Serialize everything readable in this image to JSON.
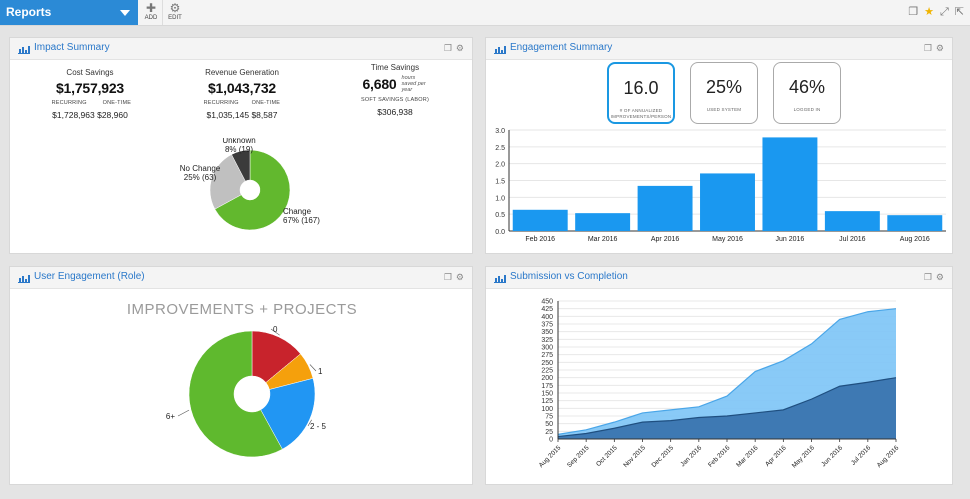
{
  "topbar": {
    "title": "Reports",
    "add_label": "ADD",
    "edit_label": "EDIT",
    "add_icon": "plus-icon",
    "edit_icon": "gear-icon"
  },
  "impact": {
    "title": "Impact Summary",
    "cost": {
      "title": "Cost Savings",
      "value": "$1,757,923",
      "sub1_label": "RECURRING",
      "sub2_label": "ONE-TIME",
      "sub1_value": "$1,728,963",
      "sub2_value": "$28,960"
    },
    "revenue": {
      "title": "Revenue Generation",
      "value": "$1,043,732",
      "sub1_label": "RECURRING",
      "sub2_label": "ONE-TIME",
      "sub1_value": "$1,035,145",
      "sub2_value": "$8,587"
    },
    "time": {
      "title": "Time Savings",
      "value": "6,680",
      "unit": "hours saved per year",
      "soft_label": "SOFT SAVINGS (LABOR)",
      "soft_value": "$306,938"
    },
    "donut": [
      {
        "label": "Change",
        "value_text": "67% (167)",
        "value": 167,
        "color": "#62b82e"
      },
      {
        "label": "No Change",
        "value_text": "25% (63)",
        "value": 63,
        "color": "#c0c0c0"
      },
      {
        "label": "Unknown",
        "value_text": "8% (19)",
        "value": 19,
        "color": "#3b3b3b"
      }
    ]
  },
  "engagement": {
    "title": "Engagement Summary",
    "kpis": [
      {
        "value": "16.0",
        "label": "# OF ANNUALIZED IMPROVEMENTS/PERSON"
      },
      {
        "value": "25%",
        "label": "USED SYSTEM"
      },
      {
        "value": "46%",
        "label": "LOGGED IN"
      }
    ]
  },
  "user_engagement": {
    "title": "User Engagement (Role)",
    "subtitle": "IMPROVEMENTS + PROJECTS"
  },
  "submission": {
    "title": "Submission vs Completion"
  },
  "chart_data": [
    {
      "type": "pie",
      "title": "Impact Summary",
      "categories": [
        "Change",
        "No Change",
        "Unknown"
      ],
      "values": [
        167,
        63,
        19
      ],
      "percent": [
        67,
        25,
        8
      ]
    },
    {
      "type": "bar",
      "title": "Engagement Summary",
      "categories": [
        "Feb 2016",
        "Mar 2016",
        "Apr 2016",
        "May 2016",
        "Jun 2016",
        "Jul 2016",
        "Aug 2016"
      ],
      "values": [
        0.63,
        0.53,
        1.34,
        1.71,
        2.78,
        0.59,
        0.47
      ],
      "ylim": [
        0,
        3.0
      ],
      "yticks": [
        0.0,
        0.5,
        1.0,
        1.5,
        2.0,
        2.5,
        3.0
      ],
      "color": "#1a98f0"
    },
    {
      "type": "pie",
      "title": "IMPROVEMENTS + PROJECTS",
      "categories": [
        "0",
        "1",
        "2 - 5",
        "6+"
      ],
      "values": [
        14,
        7,
        21,
        58
      ],
      "colors": [
        "#c8232c",
        "#f5a00c",
        "#2196f3",
        "#5fb92e"
      ]
    },
    {
      "type": "area",
      "title": "Submission vs Completion",
      "categories": [
        "Aug 2015",
        "Sep 2015",
        "Oct 2015",
        "Nov 2015",
        "Dec 2015",
        "Jan 2016",
        "Feb 2016",
        "Mar 2016",
        "Apr 2016",
        "May 2016",
        "Jun 2016",
        "Jul 2016",
        "Aug 2016"
      ],
      "series": [
        {
          "name": "Submission",
          "values": [
            15,
            30,
            55,
            85,
            95,
            105,
            140,
            220,
            255,
            310,
            390,
            415,
            425
          ],
          "color": "#7cc4f6"
        },
        {
          "name": "Completion",
          "values": [
            8,
            18,
            35,
            55,
            60,
            70,
            75,
            85,
            95,
            130,
            172,
            185,
            200
          ],
          "color": "#3e79b3"
        }
      ],
      "ylim": [
        0,
        450
      ],
      "yticks": [
        0,
        25,
        50,
        75,
        100,
        125,
        150,
        175,
        200,
        225,
        250,
        275,
        300,
        325,
        350,
        375,
        400,
        425,
        450
      ]
    }
  ]
}
